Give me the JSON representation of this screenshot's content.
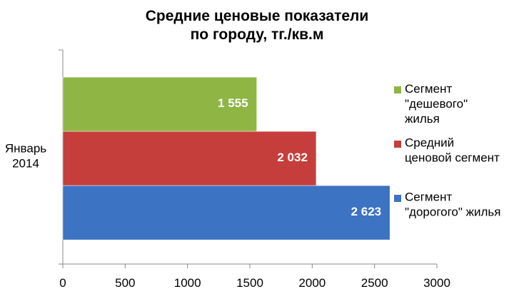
{
  "chart_data": {
    "type": "hbar",
    "title": "Средние ценовые показатели\nпо городу, тг./кв.м",
    "categories": [
      "Январь\n2014"
    ],
    "series": [
      {
        "name": "Сегмент\n\"дешевого\"\nжилья",
        "color": "#8fb545",
        "values": [
          1555
        ],
        "value_labels": [
          "1 555"
        ]
      },
      {
        "name": "Средний\nценовой сегмент",
        "color": "#c63e3b",
        "values": [
          2032
        ],
        "value_labels": [
          "2 032"
        ]
      },
      {
        "name": "Сегмент\n\"дорогого\" жилья",
        "color": "#3c73c2",
        "values": [
          2623
        ],
        "value_labels": [
          "2 623"
        ]
      }
    ],
    "xlim": [
      0,
      3000
    ],
    "xticks": [
      0,
      500,
      1000,
      1500,
      2000,
      2500,
      3000
    ]
  }
}
